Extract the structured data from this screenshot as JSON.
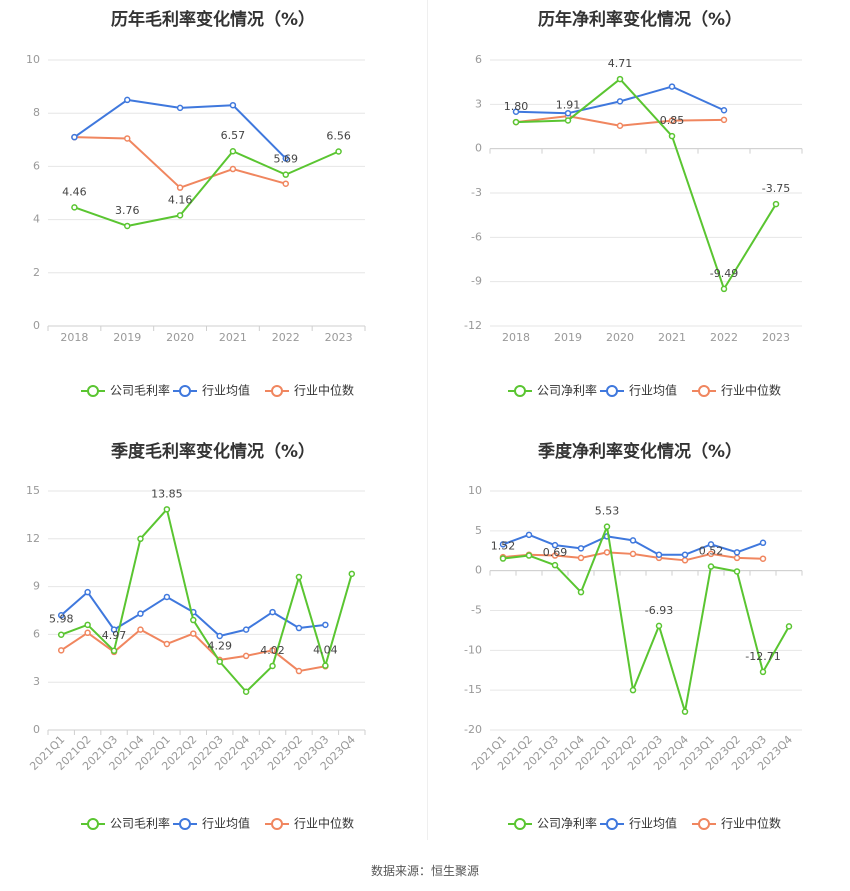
{
  "source_label": "数据来源：恒生聚源",
  "colors": {
    "company": "#5ac531",
    "industry_avg": "#3f78dd",
    "industry_median": "#f0865f",
    "grid": "#e6e6e6",
    "axis": "#999999",
    "title": "#333333",
    "label": "#444444"
  },
  "chart_data": [
    {
      "id": "annual-gross",
      "type": "line",
      "title": "历年毛利率变化情况（%）",
      "categories": [
        "2018",
        "2019",
        "2020",
        "2021",
        "2022",
        "2023"
      ],
      "ylim": [
        0,
        10
      ],
      "yticks": [
        0,
        2,
        4,
        6,
        8,
        10
      ],
      "rotate_x": false,
      "legend": "bottom-center",
      "series": [
        {
          "name": "公司毛利率",
          "key": "company",
          "values": [
            4.46,
            3.76,
            4.16,
            6.57,
            5.69,
            6.56
          ]
        },
        {
          "name": "行业均值",
          "key": "industry_avg",
          "values": [
            7.1,
            8.5,
            8.2,
            8.3,
            6.3,
            null
          ]
        },
        {
          "name": "行业中位数",
          "key": "industry_median",
          "values": [
            7.1,
            7.05,
            5.2,
            5.9,
            5.35,
            null
          ]
        }
      ],
      "data_labels": [
        {
          "index": 0,
          "text": "4.46"
        },
        {
          "index": 1,
          "text": "3.76"
        },
        {
          "index": 2,
          "text": "4.16"
        },
        {
          "index": 3,
          "text": "6.57"
        },
        {
          "index": 4,
          "text": "5.69"
        },
        {
          "index": 5,
          "text": "6.56"
        }
      ]
    },
    {
      "id": "annual-net",
      "type": "line",
      "title": "历年净利率变化情况（%）",
      "categories": [
        "2018",
        "2019",
        "2020",
        "2021",
        "2022",
        "2023"
      ],
      "ylim": [
        -12,
        6
      ],
      "yticks": [
        -12,
        -9,
        -6,
        -3,
        0,
        3,
        6
      ],
      "rotate_x": false,
      "legend": "bottom-center",
      "series": [
        {
          "name": "公司净利率",
          "key": "company",
          "values": [
            1.8,
            1.91,
            4.71,
            0.85,
            -9.49,
            -3.75
          ]
        },
        {
          "name": "行业均值",
          "key": "industry_avg",
          "values": [
            2.5,
            2.4,
            3.2,
            4.2,
            2.6,
            null
          ]
        },
        {
          "name": "行业中位数",
          "key": "industry_median",
          "values": [
            1.8,
            2.2,
            1.55,
            1.9,
            1.95,
            null
          ]
        }
      ],
      "data_labels": [
        {
          "index": 0,
          "text": "1.80"
        },
        {
          "index": 1,
          "text": "1.91"
        },
        {
          "index": 2,
          "text": "4.71"
        },
        {
          "index": 3,
          "text": "0.85"
        },
        {
          "index": 4,
          "text": "-9.49"
        },
        {
          "index": 5,
          "text": "-3.75"
        }
      ]
    },
    {
      "id": "quarterly-gross",
      "type": "line",
      "title": "季度毛利率变化情况（%）",
      "categories": [
        "2021Q1",
        "2021Q2",
        "2021Q3",
        "2021Q4",
        "2022Q1",
        "2022Q2",
        "2022Q3",
        "2022Q4",
        "2023Q1",
        "2023Q2",
        "2023Q3",
        "2023Q4"
      ],
      "ylim": [
        0,
        15
      ],
      "yticks": [
        0,
        3,
        6,
        9,
        12,
        15
      ],
      "rotate_x": true,
      "legend": "bottom-center",
      "series": [
        {
          "name": "公司毛利率",
          "key": "company",
          "values": [
            5.98,
            6.6,
            4.97,
            12.0,
            13.85,
            6.9,
            4.29,
            2.4,
            4.02,
            9.6,
            4.04,
            9.8
          ]
        },
        {
          "name": "行业均值",
          "key": "industry_avg",
          "values": [
            7.2,
            8.65,
            6.3,
            7.3,
            8.35,
            7.4,
            5.9,
            6.3,
            7.4,
            6.4,
            6.6,
            null
          ]
        },
        {
          "name": "行业中位数",
          "key": "industry_median",
          "values": [
            5.0,
            6.1,
            4.9,
            6.3,
            5.4,
            6.05,
            4.4,
            4.65,
            5.0,
            3.7,
            4.0,
            null
          ]
        }
      ],
      "data_labels": [
        {
          "index": 0,
          "text": "5.98"
        },
        {
          "index": 2,
          "text": "4.97"
        },
        {
          "index": 4,
          "text": "13.85"
        },
        {
          "index": 6,
          "text": "4.29"
        },
        {
          "index": 8,
          "text": "4.02"
        },
        {
          "index": 10,
          "text": "4.04"
        }
      ]
    },
    {
      "id": "quarterly-net",
      "type": "line",
      "title": "季度净利率变化情况（%）",
      "categories": [
        "2021Q1",
        "2021Q2",
        "2021Q3",
        "2021Q4",
        "2022Q1",
        "2022Q2",
        "2022Q3",
        "2022Q4",
        "2023Q1",
        "2023Q2",
        "2023Q3",
        "2023Q4"
      ],
      "ylim": [
        -20,
        10
      ],
      "yticks": [
        -20,
        -15,
        -10,
        -5,
        0,
        5,
        10
      ],
      "rotate_x": true,
      "legend": "bottom-center",
      "series": [
        {
          "name": "公司净利率",
          "key": "company",
          "values": [
            1.52,
            1.9,
            0.69,
            -2.7,
            5.53,
            -15.0,
            -6.93,
            -17.7,
            0.52,
            -0.1,
            -12.71,
            -7.0
          ]
        },
        {
          "name": "行业均值",
          "key": "industry_avg",
          "values": [
            3.3,
            4.5,
            3.2,
            2.8,
            4.3,
            3.8,
            2.0,
            2.0,
            3.3,
            2.3,
            3.5,
            null
          ]
        },
        {
          "name": "行业中位数",
          "key": "industry_median",
          "values": [
            1.7,
            2.0,
            1.9,
            1.6,
            2.3,
            2.1,
            1.6,
            1.3,
            2.1,
            1.6,
            1.5,
            null
          ]
        }
      ],
      "data_labels": [
        {
          "index": 0,
          "text": "1.52"
        },
        {
          "index": 2,
          "text": "0.69"
        },
        {
          "index": 4,
          "text": "5.53"
        },
        {
          "index": 6,
          "text": "-6.93"
        },
        {
          "index": 8,
          "text": "0.52"
        },
        {
          "index": 10,
          "text": "-12.71"
        }
      ]
    }
  ]
}
